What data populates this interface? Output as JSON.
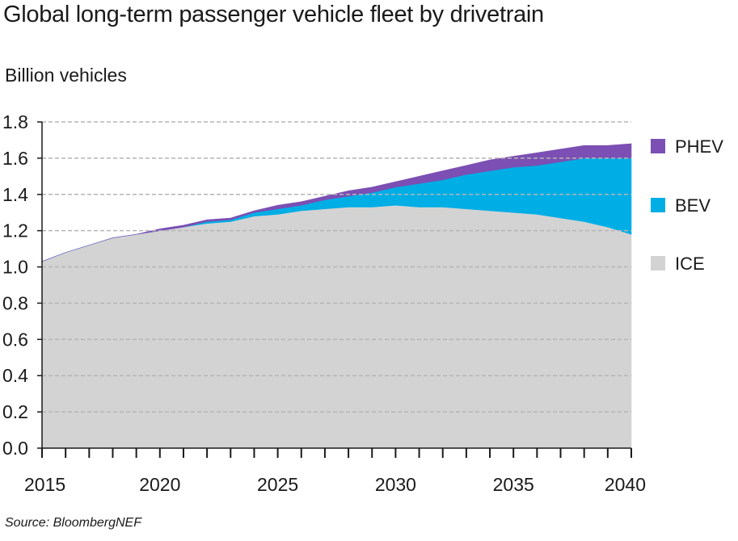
{
  "page_title": "Global long-term passenger vehicle fleet by drivetrain",
  "source": "Source: BloombergNEF",
  "chart_data": {
    "type": "area",
    "stacked": true,
    "title": "Global long-term passenger vehicle fleet by drivetrain",
    "ylabel": "Billion vehicles",
    "xlabel": "",
    "x": [
      2015,
      2016,
      2017,
      2018,
      2019,
      2020,
      2021,
      2022,
      2023,
      2024,
      2025,
      2026,
      2027,
      2028,
      2029,
      2030,
      2031,
      2032,
      2033,
      2034,
      2035,
      2036,
      2037,
      2038,
      2039,
      2040
    ],
    "xlim": [
      2015,
      2040
    ],
    "ylim": [
      0,
      1.8
    ],
    "y_ticks": [
      "0.0",
      "0.2",
      "0.4",
      "0.6",
      "0.8",
      "1.0",
      "1.2",
      "1.4",
      "1.6",
      "1.8"
    ],
    "x_ticks": [
      "2015",
      "2020",
      "2025",
      "2030",
      "2035",
      "2040"
    ],
    "grid": "horizontal dashed",
    "legend": "right",
    "series": [
      {
        "name": "ICE",
        "color": "#d3d3d3",
        "values": [
          1.03,
          1.08,
          1.12,
          1.16,
          1.18,
          1.2,
          1.22,
          1.24,
          1.25,
          1.28,
          1.29,
          1.31,
          1.32,
          1.33,
          1.33,
          1.34,
          1.33,
          1.33,
          1.32,
          1.31,
          1.3,
          1.29,
          1.27,
          1.25,
          1.22,
          1.18
        ]
      },
      {
        "name": "BEV",
        "color": "#00aee6",
        "values": [
          0.0,
          0.0,
          0.0,
          0.0,
          0.0,
          0.0,
          0.0,
          0.01,
          0.01,
          0.02,
          0.03,
          0.03,
          0.05,
          0.06,
          0.08,
          0.1,
          0.13,
          0.15,
          0.19,
          0.22,
          0.25,
          0.27,
          0.31,
          0.35,
          0.38,
          0.42
        ]
      },
      {
        "name": "PHEV",
        "color": "#7b4fb3",
        "values": [
          0.0,
          0.0,
          0.0,
          0.0,
          0.0,
          0.01,
          0.01,
          0.01,
          0.01,
          0.01,
          0.02,
          0.02,
          0.02,
          0.03,
          0.03,
          0.03,
          0.04,
          0.05,
          0.05,
          0.06,
          0.06,
          0.07,
          0.07,
          0.07,
          0.07,
          0.08
        ]
      }
    ]
  }
}
